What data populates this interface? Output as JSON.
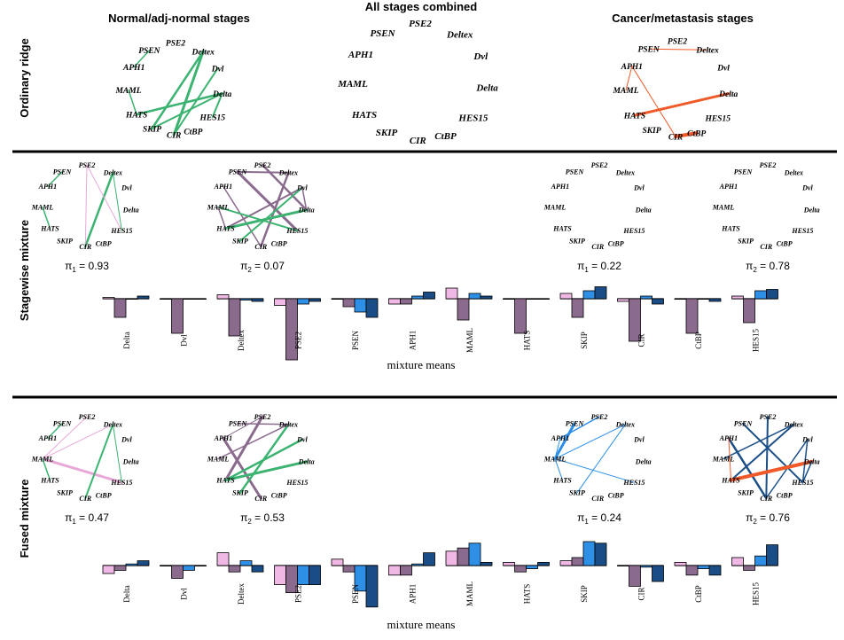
{
  "headers": {
    "left": "Normal/adj-normal stages",
    "middle": "All stages combined",
    "right": "Cancer/metastasis stages"
  },
  "row_labels": {
    "row1": "Ordinary ridge",
    "row2": "Stagewise mixture",
    "row3": "Fused mixture"
  },
  "genes": [
    "PSE2",
    "Deltex",
    "Dvl",
    "Delta",
    "HES15",
    "CtBP",
    "CIR",
    "SKIP",
    "HATS",
    "MAML",
    "APH1",
    "PSEN"
  ],
  "bar_genes": [
    "Delta",
    "Dvl",
    "Deltex",
    "PSE2",
    "PSEN",
    "APH1",
    "MAML",
    "HATS",
    "SKIP",
    "CIR",
    "CtBP",
    "HES15"
  ],
  "mixture_label": "mixture means",
  "colors": {
    "green": "#3cb371",
    "orange": "#f05a28",
    "purple": "#8a6b8e",
    "pink": "#e8a9d8",
    "lightblue": "#2b8fe8",
    "navy": "#1b4f88",
    "light_pink_bar": "#f0b8e4",
    "mauve_bar": "#8a6b8e",
    "blue_bar": "#2e8fe6",
    "navy_bar": "#1a4d86",
    "separator": "#000000"
  },
  "networks": [
    {
      "id": "ridge-normal",
      "edges": [
        [
          "Deltex",
          "CIR",
          "green",
          3
        ],
        [
          "Deltex",
          "SKIP",
          "green",
          2.5
        ],
        [
          "Delta",
          "HATS",
          "green",
          2.5
        ],
        [
          "Delta",
          "HES15",
          "green",
          2
        ],
        [
          "Dvl",
          "CIR",
          "green",
          2
        ],
        [
          "PSEN",
          "APH1",
          "green",
          1.5
        ],
        [
          "MAML",
          "HATS",
          "green",
          1.5
        ],
        [
          "Delta",
          "SKIP",
          "green",
          2
        ]
      ]
    },
    {
      "id": "ridge-combined",
      "edges": []
    },
    {
      "id": "ridge-cancer",
      "edges": [
        [
          "PSEN",
          "Deltex",
          "orange",
          1
        ],
        [
          "APH1",
          "CIR",
          "orange",
          1
        ],
        [
          "HATS",
          "Delta",
          "orange",
          3
        ],
        [
          "CIR",
          "CtBP",
          "orange",
          4
        ],
        [
          "APH1",
          "MAML",
          "orange",
          1
        ]
      ]
    },
    {
      "id": "stage-normal-1",
      "pi": "π",
      "pi_sub": "1",
      "pi_val": "= 0.93",
      "edges": [
        [
          "Deltex",
          "CIR",
          "green",
          2.5
        ],
        [
          "PSEN",
          "APH1",
          "green",
          1.5
        ],
        [
          "MAML",
          "HATS",
          "green",
          1.5
        ],
        [
          "PSE2",
          "HES15",
          "pink",
          1
        ],
        [
          "Deltex",
          "HES15",
          "green",
          1
        ],
        [
          "PSE2",
          "CIR",
          "pink",
          1
        ]
      ]
    },
    {
      "id": "stage-normal-2",
      "pi": "π",
      "pi_sub": "2",
      "pi_val": "= 0.07",
      "edges": [
        [
          "PSEN",
          "HES15",
          "purple",
          3
        ],
        [
          "PSE2",
          "Delta",
          "purple",
          2.5
        ],
        [
          "Deltex",
          "CIR",
          "purple",
          2.5
        ],
        [
          "Dvl",
          "HATS",
          "purple",
          2
        ],
        [
          "APH1",
          "CIR",
          "purple",
          1.5
        ],
        [
          "PSEN",
          "Deltex",
          "purple",
          2
        ],
        [
          "Delta",
          "HATS",
          "green",
          3
        ],
        [
          "Dvl",
          "SKIP",
          "green",
          2
        ],
        [
          "MAML",
          "HES15",
          "green",
          2
        ],
        [
          "Dvl",
          "Delta",
          "purple",
          1.5
        ],
        [
          "HATS",
          "MAML",
          "purple",
          1.5
        ]
      ]
    },
    {
      "id": "stage-cancer-1",
      "pi": "π",
      "pi_sub": "1",
      "pi_val": "= 0.22",
      "edges": []
    },
    {
      "id": "stage-cancer-2",
      "pi": "π",
      "pi_sub": "2",
      "pi_val": "= 0.78",
      "edges": []
    },
    {
      "id": "fused-normal-1",
      "pi": "π",
      "pi_sub": "1",
      "pi_val": "= 0.47",
      "edges": [
        [
          "MAML",
          "HES15",
          "pink",
          3
        ],
        [
          "Deltex",
          "MAML",
          "pink",
          1
        ],
        [
          "PSE2",
          "MAML",
          "pink",
          1
        ],
        [
          "Deltex",
          "CIR",
          "green",
          2
        ],
        [
          "PSEN",
          "APH1",
          "green",
          1.5
        ],
        [
          "MAML",
          "HATS",
          "green",
          1.5
        ],
        [
          "Deltex",
          "HES15",
          "green",
          1
        ]
      ]
    },
    {
      "id": "fused-normal-2",
      "pi": "π",
      "pi_sub": "2",
      "pi_val": "= 0.53",
      "edges": [
        [
          "PSE2",
          "HATS",
          "purple",
          3
        ],
        [
          "APH1",
          "CIR",
          "purple",
          3
        ],
        [
          "Deltex",
          "SKIP",
          "green",
          2.5
        ],
        [
          "Dvl",
          "HATS",
          "green",
          2.5
        ],
        [
          "Delta",
          "HATS",
          "green",
          3
        ],
        [
          "MAML",
          "Deltex",
          "purple",
          1.5
        ],
        [
          "PSEN",
          "Deltex",
          "purple",
          1.5
        ],
        [
          "APH1",
          "PSE2",
          "purple",
          1
        ]
      ]
    },
    {
      "id": "fused-cancer-1",
      "pi": "π",
      "pi_sub": "1",
      "pi_val": "= 0.24",
      "edges": [
        [
          "MAML",
          "HES15",
          "lightblue",
          1
        ],
        [
          "MAML",
          "PSEN",
          "lightblue",
          3
        ],
        [
          "MAML",
          "Deltex",
          "lightblue",
          1
        ],
        [
          "APH1",
          "PSE2",
          "lightblue",
          1.5
        ],
        [
          "Deltex",
          "SKIP",
          "lightblue",
          1
        ],
        [
          "MAML",
          "APH1",
          "lightblue",
          1
        ],
        [
          "MAML",
          "HATS",
          "lightblue",
          1
        ]
      ]
    },
    {
      "id": "fused-cancer-2",
      "pi": "π",
      "pi_sub": "2",
      "pi_val": "= 0.76",
      "edges": [
        [
          "APH1",
          "CIR",
          "navy",
          2.5
        ],
        [
          "PSE2",
          "CIR",
          "navy",
          2
        ],
        [
          "PSEN",
          "HES15",
          "navy",
          2
        ],
        [
          "Deltex",
          "HATS",
          "navy",
          2
        ],
        [
          "Dvl",
          "CIR",
          "navy",
          1.5
        ],
        [
          "HATS",
          "Delta",
          "orange",
          4
        ],
        [
          "MAML",
          "Deltex",
          "navy",
          1.5
        ],
        [
          "APH1",
          "HATS",
          "orange",
          1
        ],
        [
          "Dvl",
          "HES15",
          "navy",
          1.5
        ],
        [
          "Delta",
          "HES15",
          "navy",
          1.5
        ]
      ]
    }
  ],
  "bars_stagewise": [
    [
      0.1,
      -1.4,
      0,
      0.2
    ],
    [
      0,
      -2.6,
      0,
      0
    ],
    [
      0.3,
      -2.8,
      -0.1,
      -0.2
    ],
    [
      -0.5,
      -4.6,
      -0.4,
      -0.2
    ],
    [
      0,
      -0.6,
      -1.0,
      -1.4
    ],
    [
      -0.4,
      -0.4,
      0.2,
      0.5
    ],
    [
      0.8,
      -1.6,
      0.4,
      0.2
    ],
    [
      0,
      -2.6,
      0,
      0
    ],
    [
      0.4,
      -1.4,
      0.6,
      0.9
    ],
    [
      -0.2,
      -3.2,
      0.2,
      -0.4
    ],
    [
      0,
      -2.6,
      0,
      -0.2
    ],
    [
      0.2,
      -1.8,
      0.6,
      0.7
    ]
  ],
  "bars_fused": [
    [
      -0.5,
      -0.3,
      0.1,
      0.3
    ],
    [
      0,
      -0.8,
      -0.3,
      0
    ],
    [
      0.8,
      -0.4,
      0.3,
      -0.4
    ],
    [
      -1.2,
      -1.7,
      -1.2,
      -1.2
    ],
    [
      0.4,
      -0.4,
      -1.6,
      -2.6
    ],
    [
      -0.6,
      -0.6,
      0.1,
      0.8
    ],
    [
      0.9,
      1.1,
      1.4,
      0.2
    ],
    [
      0.2,
      -0.4,
      -0.2,
      0.2
    ],
    [
      0.3,
      0.5,
      1.5,
      1.4
    ],
    [
      0,
      -1.3,
      -0.1,
      -1.0
    ],
    [
      0.2,
      -0.6,
      -0.2,
      -0.6
    ],
    [
      0.5,
      -0.3,
      0.6,
      1.3
    ]
  ]
}
